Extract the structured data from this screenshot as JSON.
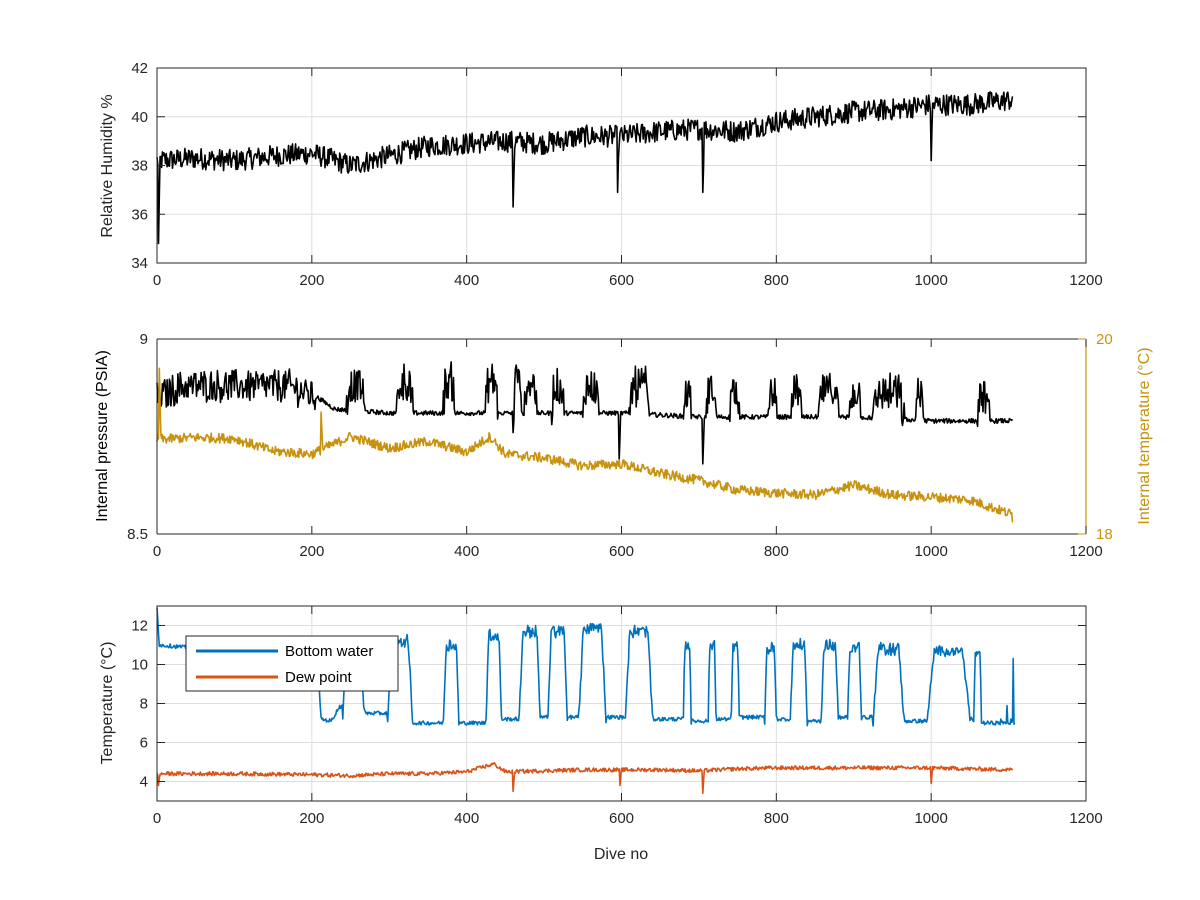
{
  "chart_data": [
    {
      "type": "line",
      "ylabel": "Relative Humidity %",
      "xlim": [
        0,
        1200
      ],
      "ylim": [
        34,
        42
      ],
      "xticks": [
        "0",
        "200",
        "400",
        "600",
        "800",
        "1000",
        "1200"
      ],
      "yticks": [
        "34",
        "36",
        "38",
        "40",
        "42"
      ],
      "grid": true,
      "series": [
        {
          "color": "#000000",
          "noise": 0.45,
          "points": [
            [
              0,
              38.2
            ],
            [
              50,
              38.3
            ],
            [
              100,
              38.2
            ],
            [
              150,
              38.4
            ],
            [
              200,
              38.5
            ],
            [
              250,
              38.0
            ],
            [
              300,
              38.4
            ],
            [
              350,
              38.8
            ],
            [
              400,
              38.9
            ],
            [
              450,
              39.0
            ],
            [
              500,
              38.9
            ],
            [
              550,
              39.2
            ],
            [
              600,
              39.2
            ],
            [
              650,
              39.4
            ],
            [
              700,
              39.5
            ],
            [
              750,
              39.4
            ],
            [
              800,
              39.8
            ],
            [
              850,
              40.0
            ],
            [
              900,
              40.2
            ],
            [
              950,
              40.3
            ],
            [
              1000,
              40.5
            ],
            [
              1050,
              40.5
            ],
            [
              1105,
              40.7
            ]
          ],
          "spikes": [
            [
              2,
              34.8
            ],
            [
              460,
              36.3
            ],
            [
              595,
              36.9
            ],
            [
              705,
              36.9
            ],
            [
              1000,
              38.2
            ]
          ]
        }
      ]
    },
    {
      "type": "line",
      "ylabel": "Internal pressure (PSIA)",
      "y2label": "Internal temperature (°C)",
      "xlim": [
        0,
        1200
      ],
      "ylim": [
        8.5,
        9
      ],
      "y2lim": [
        18,
        20
      ],
      "xticks": [
        "0",
        "200",
        "400",
        "600",
        "800",
        "1000",
        "1200"
      ],
      "yticks": [
        "8.5",
        "9"
      ],
      "y2ticks": [
        "18",
        "20"
      ],
      "grid": false,
      "series": [
        {
          "axis": "left",
          "color": "#000000",
          "noise": 0.006,
          "points": [
            [
              0,
              8.86
            ],
            [
              100,
              8.86
            ],
            [
              200,
              8.86
            ],
            [
              230,
              8.82
            ],
            [
              300,
              8.81
            ],
            [
              400,
              8.81
            ],
            [
              500,
              8.81
            ],
            [
              600,
              8.81
            ],
            [
              700,
              8.8
            ],
            [
              800,
              8.8
            ],
            [
              900,
              8.8
            ],
            [
              1000,
              8.79
            ],
            [
              1105,
              8.79
            ]
          ],
          "pulses": [
            [
              0,
              205,
              8.85,
              8.88,
              0.04
            ],
            [
              245,
              268,
              8.83,
              8.88,
              0.04
            ],
            [
              310,
              330,
              8.83,
              8.89,
              0.05
            ],
            [
              370,
              385,
              8.83,
              8.89,
              0.05
            ],
            [
              425,
              440,
              8.83,
              8.89,
              0.05
            ],
            [
              460,
              470,
              8.83,
              8.89,
              0.05
            ],
            [
              475,
              490,
              8.83,
              8.89,
              0.05
            ],
            [
              510,
              525,
              8.83,
              8.88,
              0.05
            ],
            [
              550,
              570,
              8.83,
              8.88,
              0.05
            ],
            [
              610,
              635,
              8.82,
              8.88,
              0.05
            ],
            [
              680,
              690,
              8.82,
              8.86,
              0.04
            ],
            [
              710,
              722,
              8.82,
              8.87,
              0.04
            ],
            [
              740,
              752,
              8.82,
              8.87,
              0.04
            ],
            [
              790,
              800,
              8.82,
              8.86,
              0.04
            ],
            [
              820,
              832,
              8.82,
              8.87,
              0.04
            ],
            [
              855,
              880,
              8.82,
              8.87,
              0.04
            ],
            [
              895,
              910,
              8.82,
              8.86,
              0.04
            ],
            [
              925,
              965,
              8.8,
              8.86,
              0.05
            ],
            [
              980,
              990,
              8.8,
              8.86,
              0.04
            ],
            [
              1060,
              1075,
              8.8,
              8.85,
              0.04
            ]
          ],
          "spikes": [
            [
              460,
              8.76
            ],
            [
              597,
              8.69
            ],
            [
              705,
              8.68
            ]
          ]
        },
        {
          "axis": "right",
          "color": "#C8920F",
          "noise": 0.05,
          "points": [
            [
              0,
              18.97
            ],
            [
              50,
              18.99
            ],
            [
              100,
              18.98
            ],
            [
              150,
              18.85
            ],
            [
              200,
              18.82
            ],
            [
              250,
              19.0
            ],
            [
              300,
              18.88
            ],
            [
              350,
              18.95
            ],
            [
              400,
              18.84
            ],
            [
              430,
              19.0
            ],
            [
              450,
              18.82
            ],
            [
              500,
              18.78
            ],
            [
              550,
              18.7
            ],
            [
              600,
              18.72
            ],
            [
              650,
              18.62
            ],
            [
              700,
              18.55
            ],
            [
              750,
              18.45
            ],
            [
              800,
              18.42
            ],
            [
              850,
              18.4
            ],
            [
              900,
              18.5
            ],
            [
              950,
              18.4
            ],
            [
              1000,
              18.38
            ],
            [
              1050,
              18.35
            ],
            [
              1105,
              18.2
            ]
          ],
          "spikes": [
            [
              3,
              19.7
            ],
            [
              212,
              19.25
            ],
            [
              1105,
              18.12
            ]
          ]
        }
      ]
    },
    {
      "type": "line",
      "xlabel": "Dive no",
      "ylabel": "Temperature (°C)",
      "xlim": [
        0,
        1200
      ],
      "ylim": [
        3,
        13
      ],
      "xticks": [
        "0",
        "200",
        "400",
        "600",
        "800",
        "1000",
        "1200"
      ],
      "yticks": [
        "4",
        "6",
        "8",
        "10",
        "12"
      ],
      "grid": true,
      "legend": {
        "position": "top-left",
        "entries": [
          "Bottom water",
          "Dew point"
        ]
      },
      "series": [
        {
          "name": "Bottom water",
          "color": "#0072BD",
          "noise": 0.1,
          "points": [
            [
              0,
              13.0
            ],
            [
              3,
              11.0
            ],
            [
              60,
              10.8
            ],
            [
              120,
              10.7
            ],
            [
              200,
              10.6
            ],
            [
              207,
              10.6
            ],
            [
              212,
              7.2
            ],
            [
              225,
              7.1
            ],
            [
              235,
              7.8
            ],
            [
              240,
              7.9
            ]
          ],
          "pulses": [
            [
              240,
              268,
              7.5,
              10.3,
              0.3
            ],
            [
              298,
              330,
              7.0,
              11.2,
              0.3
            ],
            [
              370,
              390,
              7.0,
              11.0,
              0.3
            ],
            [
              425,
              445,
              7.2,
              11.5,
              0.3
            ],
            [
              468,
              495,
              7.3,
              11.7,
              0.3
            ],
            [
              505,
              530,
              7.3,
              11.7,
              0.3
            ],
            [
              545,
              580,
              7.3,
              11.9,
              0.3
            ],
            [
              605,
              640,
              7.2,
              11.7,
              0.3
            ],
            [
              680,
              690,
              7.1,
              11.0,
              0.3
            ],
            [
              712,
              722,
              7.2,
              11.0,
              0.3
            ],
            [
              742,
              752,
              7.3,
              10.9,
              0.3
            ],
            [
              785,
              800,
              7.2,
              10.8,
              0.3
            ],
            [
              818,
              840,
              7.1,
              11.0,
              0.3
            ],
            [
              858,
              880,
              7.3,
              11.0,
              0.3
            ],
            [
              892,
              910,
              7.3,
              10.9,
              0.3
            ],
            [
              925,
              965,
              7.1,
              10.8,
              0.3
            ],
            [
              995,
              1050,
              7.2,
              10.7,
              0.2
            ],
            [
              1055,
              1065,
              7.0,
              10.5,
              0.2
            ]
          ],
          "tail": [
            [
              1065,
              7.0
            ],
            [
              1090,
              7.2
            ],
            [
              1098,
              7.9
            ],
            [
              1103,
              7.2
            ],
            [
              1106,
              10.3
            ],
            [
              1108,
              7.0
            ]
          ]
        },
        {
          "name": "Dew point",
          "color": "#D95319",
          "noise": 0.1,
          "points": [
            [
              0,
              4.4
            ],
            [
              100,
              4.4
            ],
            [
              200,
              4.35
            ],
            [
              250,
              4.3
            ],
            [
              300,
              4.4
            ],
            [
              350,
              4.4
            ],
            [
              400,
              4.5
            ],
            [
              435,
              4.9
            ],
            [
              450,
              4.5
            ],
            [
              500,
              4.55
            ],
            [
              550,
              4.6
            ],
            [
              600,
              4.6
            ],
            [
              650,
              4.6
            ],
            [
              700,
              4.55
            ],
            [
              750,
              4.65
            ],
            [
              800,
              4.7
            ],
            [
              850,
              4.7
            ],
            [
              900,
              4.7
            ],
            [
              950,
              4.7
            ],
            [
              1000,
              4.7
            ],
            [
              1050,
              4.65
            ],
            [
              1105,
              4.6
            ]
          ],
          "spikes": [
            [
              2,
              3.8
            ],
            [
              460,
              3.5
            ],
            [
              598,
              3.8
            ],
            [
              705,
              3.4
            ],
            [
              1000,
              3.9
            ]
          ]
        }
      ]
    }
  ]
}
